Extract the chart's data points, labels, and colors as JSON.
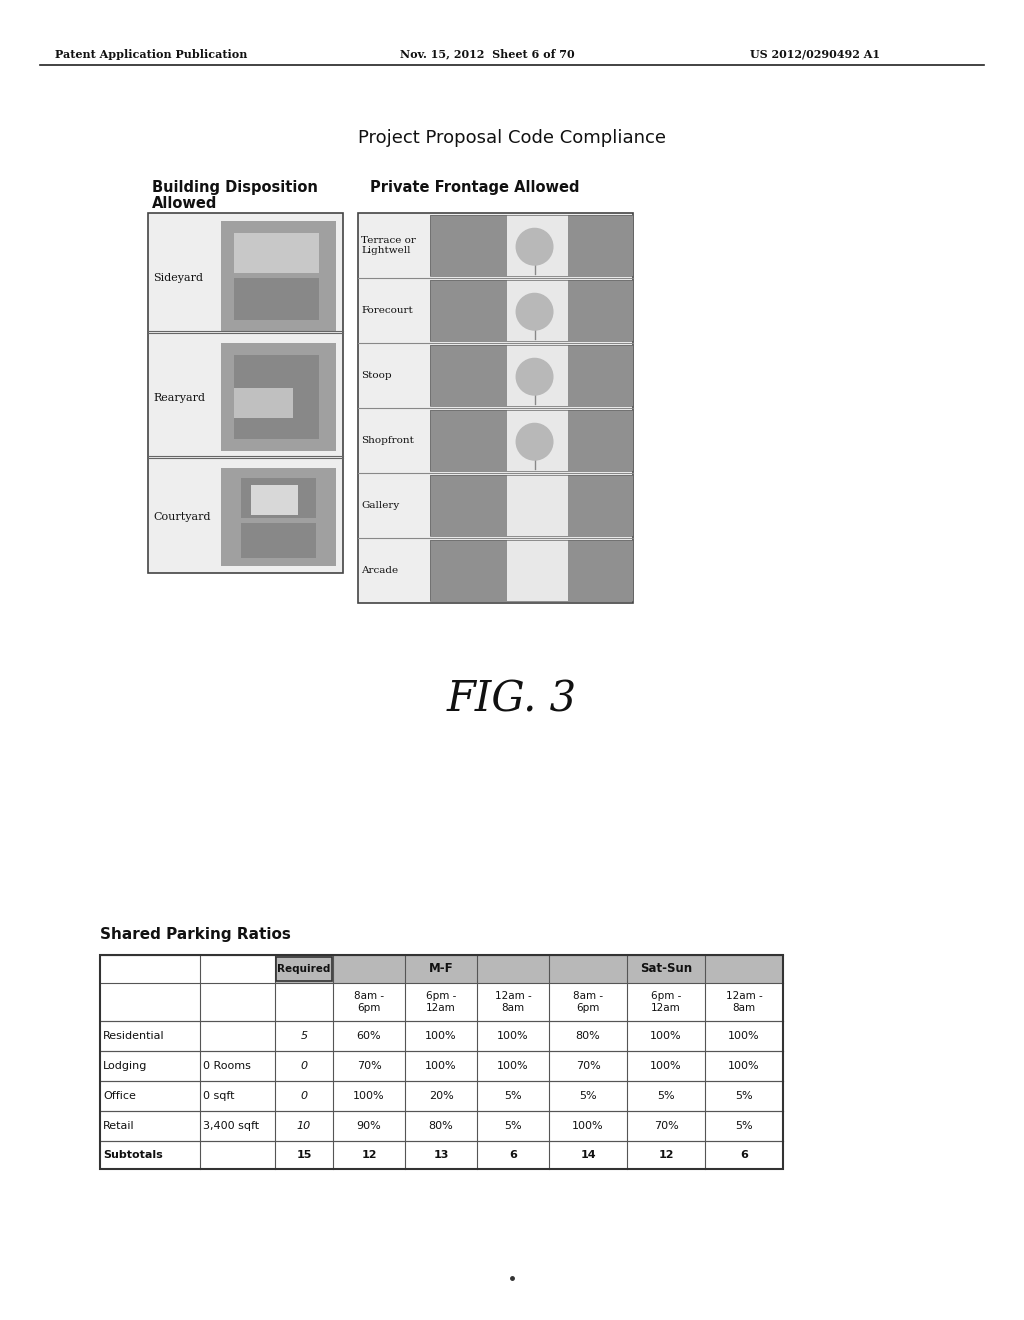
{
  "page_header_left": "Patent Application Publication",
  "page_header_mid": "Nov. 15, 2012  Sheet 6 of 70",
  "page_header_right": "US 2012/0290492 A1",
  "main_title": "Project Proposal Code Compliance",
  "section1_title": "Building Disposition\nAllowed",
  "section2_title": "Private Frontage Allowed",
  "building_disposition_labels": [
    [
      "Sideyard",
      152,
      310
    ],
    [
      "Rearyard",
      152,
      430
    ],
    [
      "Courtyard",
      152,
      527
    ]
  ],
  "private_frontage_labels": [
    "Terrace or\nLightwell",
    "Forecourt",
    "Stoop",
    "Shopfront",
    "Gallery",
    "Arcade"
  ],
  "fig_label": "FIG. 3",
  "table_title": "Shared Parking Ratios",
  "bg_color": "#ffffff"
}
